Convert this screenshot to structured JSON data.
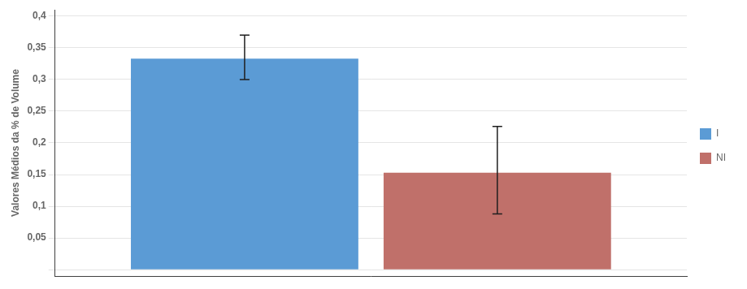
{
  "chart_data": {
    "type": "bar",
    "ylabel": "Valores Médios da % de Volume",
    "categories": [
      null
    ],
    "series": [
      {
        "name": "I",
        "color": "#5B9BD5",
        "values": [
          0.333
        ],
        "error_upper": [
          0.037
        ],
        "error_lower": [
          0.033
        ]
      },
      {
        "name": "NI",
        "color": "#C0706A",
        "values": [
          0.153
        ],
        "error_upper": [
          0.073
        ],
        "error_lower": [
          0.065
        ]
      }
    ],
    "ylim": [
      -0.01,
      0.41
    ],
    "yticks": [
      {
        "value": 0.0,
        "label": null
      },
      {
        "value": 0.05,
        "label": "0,05"
      },
      {
        "value": 0.1,
        "label": "0,1"
      },
      {
        "value": 0.15,
        "label": "0,15"
      },
      {
        "value": 0.2,
        "label": "0,2"
      },
      {
        "value": 0.25,
        "label": "0,25"
      },
      {
        "value": 0.3,
        "label": "0,3"
      },
      {
        "value": 0.35,
        "label": "0,35"
      },
      {
        "value": 0.4,
        "label": "0,4"
      }
    ],
    "grid": true,
    "legend": "right",
    "tick_labels": "y"
  }
}
